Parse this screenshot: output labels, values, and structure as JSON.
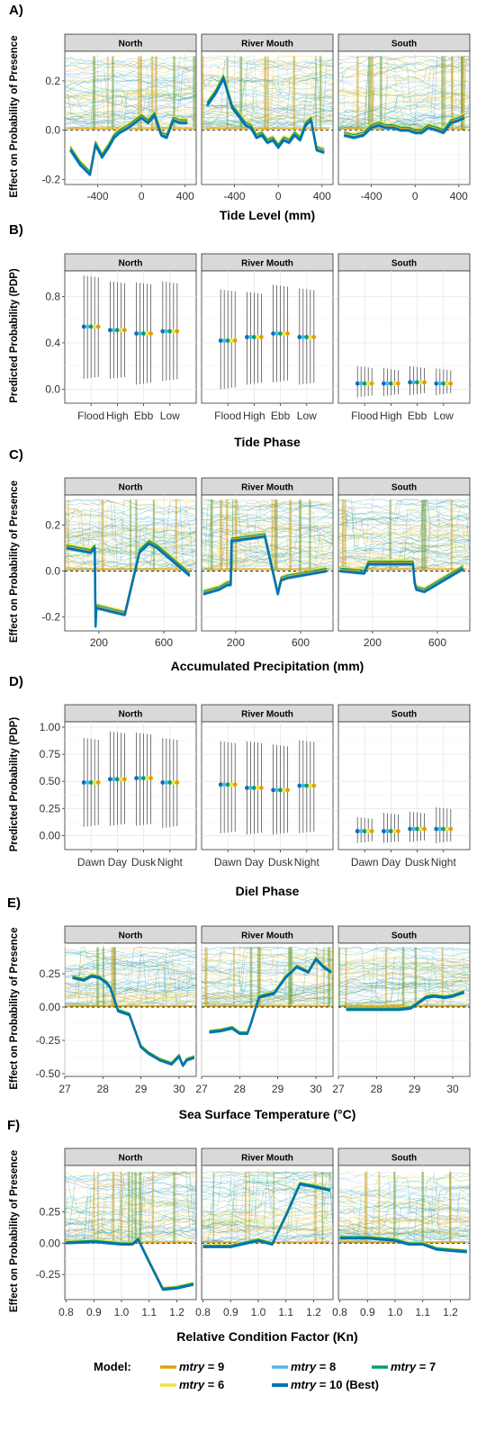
{
  "legend": {
    "title": "Model:",
    "entries": [
      {
        "name": "mtry",
        "suffix": " = 9",
        "color": "#E69F00"
      },
      {
        "name": "mtry",
        "suffix": " = 8",
        "color": "#56B4E9"
      },
      {
        "name": "mtry",
        "suffix": " = 7",
        "color": "#009E73"
      },
      {
        "name": "mtry",
        "suffix": " = 6",
        "color": "#F0E442"
      },
      {
        "name": "mtry",
        "suffix": " = 10 (Best)",
        "color": "#0072B2"
      }
    ]
  },
  "facets": [
    "North",
    "River Mouth",
    "South"
  ],
  "chart_data": [
    {
      "panel": "A)",
      "type": "line",
      "xlabel": "Tide Level (mm)",
      "ylabel": "Effect on Probability of Presence",
      "xlim": [
        -700,
        500
      ],
      "ylim": [
        -0.22,
        0.32
      ],
      "xticks": [
        -400,
        0,
        400
      ],
      "xtick_labels": [
        "-400",
        "0",
        "400"
      ],
      "yticks": [
        -0.2,
        0.0,
        0.2
      ],
      "ytick_labels": [
        "-0.2",
        "0.0",
        "0.2"
      ],
      "ice_top": 0.3,
      "series": {
        "North": {
          "x": [
            -650,
            -560,
            -470,
            -420,
            -360,
            -300,
            -250,
            -200,
            -120,
            -60,
            0,
            60,
            120,
            180,
            230,
            290,
            350,
            420
          ],
          "y": [
            -0.08,
            -0.14,
            -0.18,
            -0.06,
            -0.11,
            -0.07,
            -0.03,
            -0.01,
            0.01,
            0.03,
            0.05,
            0.03,
            0.06,
            -0.02,
            -0.03,
            0.04,
            0.03,
            0.03
          ]
        },
        "River Mouth": {
          "x": [
            -650,
            -570,
            -500,
            -420,
            -350,
            -300,
            -250,
            -200,
            -150,
            -100,
            -50,
            0,
            50,
            100,
            150,
            200,
            250,
            300,
            350,
            420
          ],
          "y": [
            0.1,
            0.15,
            0.21,
            0.09,
            0.05,
            0.02,
            0.01,
            -0.03,
            -0.02,
            -0.05,
            -0.04,
            -0.07,
            -0.04,
            -0.05,
            -0.02,
            -0.04,
            0.02,
            0.04,
            -0.08,
            -0.09
          ]
        },
        "South": {
          "x": [
            -650,
            -560,
            -470,
            -400,
            -330,
            -270,
            -200,
            -130,
            -60,
            0,
            60,
            120,
            200,
            260,
            330,
            400,
            450
          ],
          "y": [
            -0.02,
            -0.03,
            -0.02,
            0.01,
            0.02,
            0.01,
            0.01,
            0.0,
            0.0,
            -0.01,
            -0.01,
            0.01,
            0.0,
            -0.01,
            0.03,
            0.04,
            0.05
          ]
        }
      }
    },
    {
      "panel": "B)",
      "type": "scatter",
      "xlabel": "Tide Phase",
      "ylabel": "Predicted Probability (PDP)",
      "categories": [
        "Flood",
        "High",
        "Ebb",
        "Low"
      ],
      "ylim": [
        -0.12,
        1.02
      ],
      "yticks": [
        0.0,
        0.4,
        0.8
      ],
      "ytick_labels": [
        "0.0",
        "0.4",
        "0.8"
      ],
      "values": {
        "North": [
          0.54,
          0.51,
          0.48,
          0.5
        ],
        "River Mouth": [
          0.42,
          0.45,
          0.48,
          0.45
        ],
        "South": [
          0.05,
          0.05,
          0.06,
          0.05
        ]
      },
      "err_low": {
        "North": [
          0.09,
          0.09,
          0.04,
          0.07
        ],
        "River Mouth": [
          0.0,
          0.04,
          0.06,
          0.04
        ],
        "South": [
          -0.07,
          -0.06,
          -0.05,
          -0.05
        ]
      },
      "err_high": {
        "North": [
          0.98,
          0.93,
          0.92,
          0.93
        ],
        "River Mouth": [
          0.86,
          0.84,
          0.9,
          0.87
        ],
        "South": [
          0.2,
          0.18,
          0.2,
          0.18
        ]
      }
    },
    {
      "panel": "C)",
      "type": "line",
      "xlabel": "Accumulated Precipitation (mm)",
      "ylabel": "Effect on Probability of Presence",
      "xlim": [
        -10,
        800
      ],
      "ylim": [
        -0.26,
        0.33
      ],
      "xticks": [
        200,
        600
      ],
      "xtick_labels": [
        "200",
        "600"
      ],
      "yticks": [
        -0.2,
        0.0,
        0.2
      ],
      "ytick_labels": [
        "-0.2",
        "0.0",
        "0.2"
      ],
      "ice_top": 0.31,
      "series": {
        "North": {
          "x": [
            0,
            150,
            175,
            180,
            185,
            360,
            450,
            510,
            560,
            760
          ],
          "y": [
            0.1,
            0.08,
            0.1,
            -0.24,
            -0.16,
            -0.19,
            0.08,
            0.12,
            0.1,
            -0.02
          ]
        },
        "River Mouth": {
          "x": [
            0,
            100,
            150,
            170,
            175,
            380,
            460,
            480,
            520,
            760
          ],
          "y": [
            -0.1,
            -0.08,
            -0.06,
            -0.06,
            0.13,
            0.15,
            -0.1,
            -0.04,
            -0.03,
            0.0
          ]
        },
        "South": {
          "x": [
            0,
            150,
            175,
            180,
            450,
            460,
            470,
            520,
            760
          ],
          "y": [
            0.0,
            -0.01,
            0.03,
            0.03,
            0.03,
            -0.05,
            -0.08,
            -0.09,
            0.01
          ]
        }
      }
    },
    {
      "panel": "D)",
      "type": "scatter",
      "xlabel": "Diel Phase",
      "ylabel": "Predicted Probability (PDP)",
      "categories": [
        "Dawn",
        "Day",
        "Dusk",
        "Night"
      ],
      "ylim": [
        -0.13,
        1.05
      ],
      "yticks": [
        0.0,
        0.25,
        0.5,
        0.75,
        1.0
      ],
      "ytick_labels": [
        "0.00",
        "0.25",
        "0.50",
        "0.75",
        "1.00"
      ],
      "values": {
        "North": [
          0.49,
          0.52,
          0.53,
          0.49
        ],
        "River Mouth": [
          0.47,
          0.44,
          0.42,
          0.46
        ],
        "South": [
          0.04,
          0.04,
          0.06,
          0.06
        ]
      },
      "err_low": {
        "North": [
          0.08,
          0.09,
          0.09,
          0.07
        ],
        "River Mouth": [
          0.02,
          0.01,
          0.01,
          0.02
        ],
        "South": [
          -0.07,
          -0.07,
          -0.06,
          -0.07
        ]
      },
      "err_high": {
        "North": [
          0.9,
          0.96,
          0.95,
          0.9
        ],
        "River Mouth": [
          0.87,
          0.87,
          0.84,
          0.88
        ],
        "South": [
          0.17,
          0.21,
          0.22,
          0.26
        ]
      }
    },
    {
      "panel": "E)",
      "type": "line",
      "xlabel": "Sea Surface Temperature (°C)",
      "ylabel": "Effect on Probability of Presence",
      "xlim": [
        27.0,
        30.45
      ],
      "ylim": [
        -0.52,
        0.48
      ],
      "xticks": [
        27,
        28,
        29,
        30
      ],
      "xtick_labels": [
        "27",
        "28",
        "29",
        "30"
      ],
      "yticks": [
        -0.5,
        -0.25,
        0.0,
        0.25
      ],
      "ytick_labels": [
        "-0.50",
        "-0.25",
        "0.00",
        "0.25"
      ],
      "ice_top": 0.45,
      "series": {
        "North": {
          "x": [
            27.2,
            27.5,
            27.7,
            27.9,
            28.1,
            28.2,
            28.3,
            28.4,
            28.5,
            28.7,
            29.0,
            29.2,
            29.5,
            29.8,
            30.0,
            30.1,
            30.2,
            30.4
          ],
          "y": [
            0.22,
            0.2,
            0.23,
            0.22,
            0.18,
            0.14,
            0.06,
            -0.03,
            -0.04,
            -0.06,
            -0.3,
            -0.35,
            -0.4,
            -0.43,
            -0.37,
            -0.44,
            -0.4,
            -0.38
          ]
        },
        "River Mouth": {
          "x": [
            27.2,
            27.5,
            27.8,
            28.0,
            28.2,
            28.3,
            28.5,
            28.6,
            28.9,
            29.2,
            29.5,
            29.8,
            30.0,
            30.2,
            30.4
          ],
          "y": [
            -0.19,
            -0.18,
            -0.16,
            -0.2,
            -0.2,
            -0.12,
            0.07,
            0.08,
            0.1,
            0.22,
            0.3,
            0.26,
            0.36,
            0.3,
            0.26
          ]
        },
        "South": {
          "x": [
            27.2,
            28.0,
            28.6,
            28.9,
            29.0,
            29.3,
            29.5,
            29.8,
            30.0,
            30.3
          ],
          "y": [
            -0.02,
            -0.02,
            -0.02,
            -0.01,
            0.01,
            0.07,
            0.08,
            0.07,
            0.08,
            0.11
          ]
        }
      }
    },
    {
      "panel": "F)",
      "type": "line",
      "xlabel": "Relative Condition Factor (Kn)",
      "ylabel": "Effect on Probability of Presence",
      "xlim": [
        0.795,
        1.27
      ],
      "ylim": [
        -0.45,
        0.62
      ],
      "xticks": [
        0.8,
        0.9,
        1.0,
        1.1,
        1.2
      ],
      "xtick_labels": [
        "0.8",
        "0.9",
        "1.0",
        "1.1",
        "1.2"
      ],
      "yticks": [
        -0.25,
        0.0,
        0.25
      ],
      "ytick_labels": [
        "-0.25",
        "0.00",
        "0.25"
      ],
      "ice_top": 0.57,
      "series": {
        "North": {
          "x": [
            0.8,
            0.9,
            1.0,
            1.04,
            1.06,
            1.1,
            1.15,
            1.2,
            1.26
          ],
          "y": [
            0.0,
            0.01,
            -0.01,
            -0.01,
            0.03,
            -0.15,
            -0.37,
            -0.36,
            -0.33
          ]
        },
        "River Mouth": {
          "x": [
            0.8,
            0.9,
            1.0,
            1.05,
            1.1,
            1.15,
            1.2,
            1.26
          ],
          "y": [
            -0.03,
            -0.03,
            0.02,
            -0.01,
            0.22,
            0.47,
            0.45,
            0.42
          ]
        },
        "South": {
          "x": [
            0.8,
            0.9,
            1.0,
            1.05,
            1.1,
            1.15,
            1.2,
            1.26
          ],
          "y": [
            0.04,
            0.04,
            0.02,
            -0.01,
            -0.01,
            -0.05,
            -0.06,
            -0.07
          ]
        }
      }
    }
  ]
}
